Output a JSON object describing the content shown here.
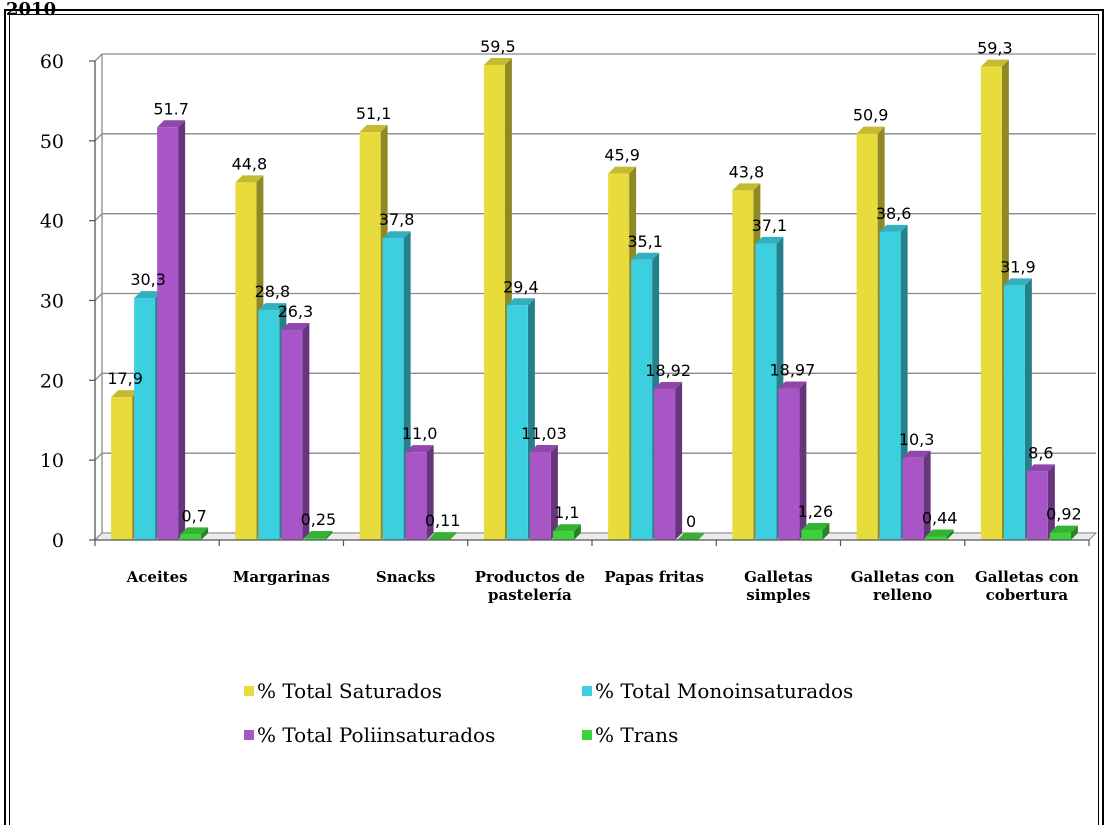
{
  "corner_text": "2010",
  "chart_data": {
    "type": "bar",
    "title": "",
    "xlabel": "",
    "ylabel": "",
    "ylim": [
      0,
      60
    ],
    "yticks": [
      0,
      10,
      20,
      30,
      40,
      50,
      60
    ],
    "grid": true,
    "legend_position": "bottom",
    "categories": [
      [
        "Aceites"
      ],
      [
        "Margarinas"
      ],
      [
        "Snacks"
      ],
      [
        "Productos de",
        "pastelería"
      ],
      [
        "Papas fritas"
      ],
      [
        "Galletas",
        "simples"
      ],
      [
        "Galletas con",
        "relleno"
      ],
      [
        "Galletas con",
        "cobertura"
      ]
    ],
    "series": [
      {
        "name": "% Total Saturados",
        "color": "#e8dc3c",
        "values": [
          17.9,
          44.8,
          51.1,
          59.5,
          45.9,
          43.8,
          50.9,
          59.3
        ],
        "labels": [
          "17,9",
          "44,8",
          "51,1",
          "59,5",
          "45,9",
          "43,8",
          "50,9",
          "59,3"
        ]
      },
      {
        "name": "% Total Monoinsaturados",
        "color": "#3ccfe0",
        "values": [
          30.3,
          28.8,
          37.8,
          29.4,
          35.1,
          37.1,
          38.6,
          31.9
        ],
        "labels": [
          "30,3",
          "28,8",
          "37,8",
          "29,4",
          "35,1",
          "37,1",
          "38,6",
          "31,9"
        ]
      },
      {
        "name": "% Total Poliinsaturados",
        "color": "#a855c8",
        "values": [
          51.7,
          26.3,
          11.0,
          11.03,
          18.92,
          18.97,
          10.3,
          8.6
        ],
        "labels": [
          "51.7",
          "26,3",
          "11,0",
          "11,03",
          "18,92",
          "18,97",
          "10,3",
          "8,6"
        ]
      },
      {
        "name": "%  Trans",
        "color": "#3dd13d",
        "values": [
          0.7,
          0.25,
          0.11,
          1.1,
          0,
          1.26,
          0.44,
          0.92
        ],
        "labels": [
          "0,7",
          "0,25",
          "0,11",
          "1,1",
          "0",
          "1,26",
          "0,44",
          "0,92"
        ]
      }
    ]
  }
}
